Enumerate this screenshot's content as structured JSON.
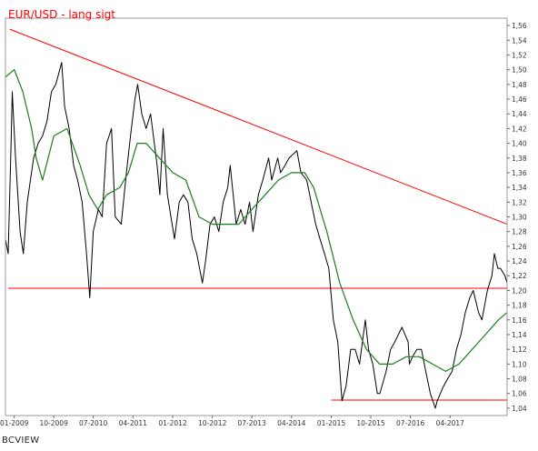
{
  "chart_data": {
    "type": "line",
    "title": "EUR/USD - lang sigt",
    "xlabel": "",
    "ylabel": "",
    "ylim": [
      1.03,
      1.57
    ],
    "xlim": [
      "2008-11-01",
      "2018-04-30"
    ],
    "grid": false,
    "legend": "none",
    "y_ticks": [
      "1,04",
      "1,06",
      "1,08",
      "1,10",
      "1,12",
      "1,14",
      "1,16",
      "1,18",
      "1,20",
      "1,22",
      "1,24",
      "1,26",
      "1,28",
      "1,30",
      "1,32",
      "1,34",
      "1,36",
      "1,38",
      "1,40",
      "1,42",
      "1,44",
      "1,46",
      "1,48",
      "1,50",
      "1,52",
      "1,54",
      "1,56"
    ],
    "x_ticks": [
      {
        "label": "01-2009",
        "date": "2009-01-01"
      },
      {
        "label": "10-2009",
        "date": "2009-10-01"
      },
      {
        "label": "07-2010",
        "date": "2010-07-01"
      },
      {
        "label": "04-2011",
        "date": "2011-04-01"
      },
      {
        "label": "01-2012",
        "date": "2012-01-01"
      },
      {
        "label": "10-2012",
        "date": "2012-10-01"
      },
      {
        "label": "07-2013",
        "date": "2013-07-01"
      },
      {
        "label": "04-2014",
        "date": "2014-04-01"
      },
      {
        "label": "01-2015",
        "date": "2015-01-01"
      },
      {
        "label": "10-2015",
        "date": "2015-10-01"
      },
      {
        "label": "07-2016",
        "date": "2016-07-01"
      },
      {
        "label": "04-2017",
        "date": "2017-04-01"
      }
    ],
    "series": [
      {
        "color": "#000000",
        "x": [
          "2008-11-01",
          "2008-11-20",
          "2008-12-10",
          "2008-12-18",
          "2009-01-10",
          "2009-02-10",
          "2009-03-05",
          "2009-04-01",
          "2009-05-15",
          "2009-06-15",
          "2009-07-15",
          "2009-08-15",
          "2009-09-15",
          "2009-10-15",
          "2009-11-25",
          "2009-12-15",
          "2010-01-15",
          "2010-02-15",
          "2010-03-15",
          "2010-04-15",
          "2010-05-15",
          "2010-06-07",
          "2010-07-01",
          "2010-08-05",
          "2010-09-01",
          "2010-10-01",
          "2010-11-04",
          "2010-11-30",
          "2011-01-10",
          "2011-02-15",
          "2011-03-15",
          "2011-04-15",
          "2011-05-04",
          "2011-06-01",
          "2011-07-01",
          "2011-08-01",
          "2011-09-15",
          "2011-10-04",
          "2011-10-27",
          "2011-11-25",
          "2012-01-13",
          "2012-02-15",
          "2012-03-15",
          "2012-04-15",
          "2012-05-15",
          "2012-06-15",
          "2012-07-24",
          "2012-08-15",
          "2012-09-15",
          "2012-10-15",
          "2012-11-15",
          "2012-12-15",
          "2013-01-15",
          "2013-02-01",
          "2013-03-15",
          "2013-04-15",
          "2013-05-15",
          "2013-06-15",
          "2013-07-09",
          "2013-08-15",
          "2013-09-15",
          "2013-10-25",
          "2013-11-15",
          "2013-12-27",
          "2014-01-15",
          "2014-02-15",
          "2014-03-15",
          "2014-05-08",
          "2014-06-05",
          "2014-07-15",
          "2014-08-15",
          "2014-09-15",
          "2014-10-15",
          "2014-11-15",
          "2014-12-15",
          "2015-01-15",
          "2015-02-15",
          "2015-03-16",
          "2015-04-13",
          "2015-05-15",
          "2015-06-15",
          "2015-07-15",
          "2015-08-24",
          "2015-09-15",
          "2015-10-15",
          "2015-11-15",
          "2015-12-03",
          "2016-01-15",
          "2016-02-15",
          "2016-03-15",
          "2016-05-03",
          "2016-06-15",
          "2016-06-24",
          "2016-07-15",
          "2016-08-15",
          "2016-09-15",
          "2016-10-15",
          "2016-11-15",
          "2016-12-20",
          "2017-01-02",
          "2017-02-15",
          "2017-03-15",
          "2017-04-15",
          "2017-05-15",
          "2017-06-15",
          "2017-07-15",
          "2017-08-15",
          "2017-09-08",
          "2017-10-15",
          "2017-11-07",
          "2017-12-15",
          "2018-01-15",
          "2018-02-01",
          "2018-02-25",
          "2018-03-15",
          "2018-04-15",
          "2018-04-30"
        ],
        "y": [
          1.27,
          1.25,
          1.4,
          1.47,
          1.38,
          1.28,
          1.25,
          1.32,
          1.38,
          1.4,
          1.41,
          1.43,
          1.47,
          1.48,
          1.51,
          1.45,
          1.42,
          1.37,
          1.35,
          1.32,
          1.25,
          1.19,
          1.28,
          1.31,
          1.3,
          1.4,
          1.42,
          1.3,
          1.29,
          1.36,
          1.41,
          1.46,
          1.48,
          1.44,
          1.42,
          1.44,
          1.37,
          1.33,
          1.42,
          1.33,
          1.27,
          1.32,
          1.33,
          1.32,
          1.27,
          1.25,
          1.21,
          1.24,
          1.29,
          1.3,
          1.28,
          1.32,
          1.34,
          1.37,
          1.29,
          1.31,
          1.29,
          1.32,
          1.28,
          1.33,
          1.35,
          1.38,
          1.35,
          1.38,
          1.36,
          1.37,
          1.38,
          1.39,
          1.36,
          1.35,
          1.32,
          1.29,
          1.27,
          1.25,
          1.23,
          1.16,
          1.13,
          1.05,
          1.07,
          1.12,
          1.12,
          1.1,
          1.16,
          1.12,
          1.1,
          1.06,
          1.06,
          1.09,
          1.12,
          1.13,
          1.15,
          1.13,
          1.1,
          1.11,
          1.12,
          1.12,
          1.09,
          1.06,
          1.04,
          1.05,
          1.07,
          1.08,
          1.09,
          1.12,
          1.14,
          1.17,
          1.19,
          1.2,
          1.17,
          1.16,
          1.2,
          1.22,
          1.25,
          1.23,
          1.23,
          1.22,
          1.21
        ]
      },
      {
        "color": "#1a7f1a",
        "x": [
          "2008-11-01",
          "2009-01-01",
          "2009-03-01",
          "2009-05-01",
          "2009-06-01",
          "2009-07-15",
          "2009-10-01",
          "2010-01-01",
          "2010-04-01",
          "2010-06-01",
          "2010-08-01",
          "2010-10-01",
          "2011-01-01",
          "2011-03-01",
          "2011-05-01",
          "2011-07-01",
          "2011-10-01",
          "2012-01-01",
          "2012-04-01",
          "2012-07-01",
          "2012-10-01",
          "2013-01-01",
          "2013-04-01",
          "2013-07-01",
          "2013-10-01",
          "2014-01-01",
          "2014-04-01",
          "2014-07-01",
          "2014-09-01",
          "2014-12-01",
          "2015-03-01",
          "2015-06-01",
          "2015-09-01",
          "2015-12-01",
          "2016-03-01",
          "2016-06-01",
          "2016-09-01",
          "2016-12-01",
          "2017-03-01",
          "2017-06-01",
          "2017-09-01",
          "2017-12-01",
          "2018-03-01",
          "2018-04-30"
        ],
        "y": [
          1.49,
          1.5,
          1.47,
          1.42,
          1.38,
          1.35,
          1.41,
          1.42,
          1.37,
          1.33,
          1.31,
          1.33,
          1.34,
          1.36,
          1.4,
          1.4,
          1.38,
          1.36,
          1.35,
          1.3,
          1.29,
          1.29,
          1.29,
          1.31,
          1.33,
          1.35,
          1.36,
          1.36,
          1.34,
          1.28,
          1.21,
          1.16,
          1.12,
          1.1,
          1.1,
          1.11,
          1.11,
          1.1,
          1.09,
          1.1,
          1.12,
          1.14,
          1.16,
          1.17
        ]
      }
    ],
    "trendlines": [
      {
        "type": "resistance",
        "color": "#ff0000",
        "x1": "2008-12-01",
        "y1": 1.555,
        "x2": "2018-04-30",
        "y2": 1.29
      },
      {
        "type": "support",
        "color": "#ff0000",
        "x1": "2008-11-20",
        "y1": 1.203,
        "x2": "2018-04-30",
        "y2": 1.203
      },
      {
        "type": "support",
        "color": "#ff0000",
        "x1": "2015-01-01",
        "y1": 1.051,
        "x2": "2018-04-30",
        "y2": 1.051
      }
    ],
    "source": "BCVIEW"
  }
}
